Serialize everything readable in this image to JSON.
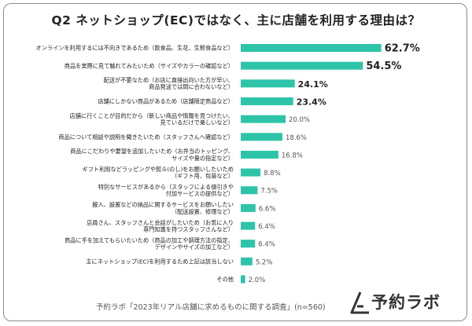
{
  "title": "Q2 ネットショップ(EC)ではなく、主に店舗を利用する理由は？",
  "footer": {
    "source": "予約ラボ「2023年リアル店舗に求めるものに関する調査」(n=560)",
    "brand": "予約ラボ"
  },
  "colors": {
    "bar": "#2ec4a9",
    "label": "#222222",
    "value_large": "#222222",
    "value_small": "#555555"
  },
  "chart_data": {
    "type": "bar",
    "orientation": "horizontal",
    "unit": "%",
    "categories": [
      [
        "オンラインを利用するには不向きであるため（飲食品、生花、生鮮食品など）"
      ],
      [
        "商品を実際に見て触れてみたいため（サイズやカラーの確認など）"
      ],
      [
        "配送が不要なため（お店に直接出向いた方が早い、",
        "商品発送では間に合わないなど）"
      ],
      [
        "店舗にしかない商品があるため（店舗限定商品など）"
      ],
      [
        "店舗に行くことが目的だから（新しい商品や情報を見つけたい、",
        "見ているだけで楽しいなど）"
      ],
      [
        "商品について相談や説明を聞きたいため（スタッフさんへ確認など）"
      ],
      [
        "商品にこだわりや要望を追加したいため（お弁当のトッピング、",
        "サイズや量の指定など）"
      ],
      [
        "ギフト利用などラッピングや熨斗(のし)をお願いしたいため",
        "（ギフト用、包装など）"
      ],
      [
        "特別なサービスがあるから（スタッフによる値引きや",
        "付加サービスの提供など）"
      ],
      [
        "搬入、設置などの納品に関するサービスをお願いしたい",
        "（配送設置、修理など）"
      ],
      [
        "店員さん、スタッフさんと会話がしたいため（お気に入り",
        "専門知識を持つスタッフさんなど）"
      ],
      [
        "商品に手を加えてもらいたいため（商品の加工や調理方法の指定、",
        "デザインやサイズの加工など）"
      ],
      [
        "主にネットショップ(EC)を利用するため上記は該当しない"
      ],
      [
        "その他"
      ]
    ],
    "values": [
      62.7,
      54.5,
      24.1,
      23.4,
      20.0,
      18.6,
      16.8,
      8.8,
      7.5,
      6.6,
      6.4,
      6.4,
      5.2,
      2.0
    ],
    "value_labels": [
      "62.7%",
      "54.5%",
      "24.1%",
      "23.4%",
      "20.0%",
      "18.6%",
      "16.8%",
      "8.8%",
      "7.5%",
      "6.6%",
      "6.4%",
      "6.4%",
      "5.2%",
      "2.0%"
    ],
    "xlim": [
      0,
      100
    ],
    "grid": false,
    "legend": false
  }
}
